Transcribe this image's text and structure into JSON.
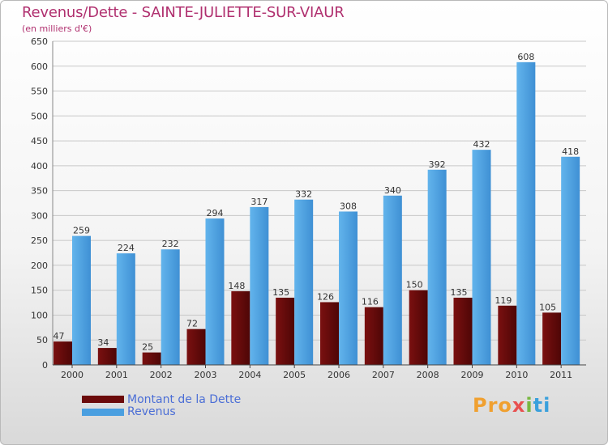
{
  "title": "Revenus/Dette - SAINTE-JULIETTE-SUR-VIAUR",
  "subtitle": "(en milliers d'€)",
  "chart_data": {
    "type": "bar",
    "categories": [
      "2000",
      "2001",
      "2002",
      "2003",
      "2004",
      "2005",
      "2006",
      "2007",
      "2008",
      "2009",
      "2010",
      "2011"
    ],
    "series": [
      {
        "name": "Montant de la Dette",
        "color": "#6b0a0a",
        "values": [
          47,
          34,
          25,
          72,
          148,
          135,
          126,
          116,
          150,
          135,
          119,
          105
        ]
      },
      {
        "name": "Revenus",
        "color": "#4a9fe0",
        "values": [
          259,
          224,
          232,
          294,
          317,
          332,
          308,
          340,
          392,
          432,
          608,
          418
        ]
      }
    ],
    "ylim": [
      0,
      650
    ],
    "yticks": [
      0,
      50,
      100,
      150,
      200,
      250,
      300,
      350,
      400,
      450,
      500,
      550,
      600,
      650
    ],
    "grid": true,
    "legend_position": "bottom-left"
  },
  "legend": {
    "debt_label": "Montant de la Dette",
    "revenue_label": "Revenus"
  },
  "logo": {
    "parts": [
      "Pro",
      "x",
      "i",
      "ti"
    ]
  }
}
